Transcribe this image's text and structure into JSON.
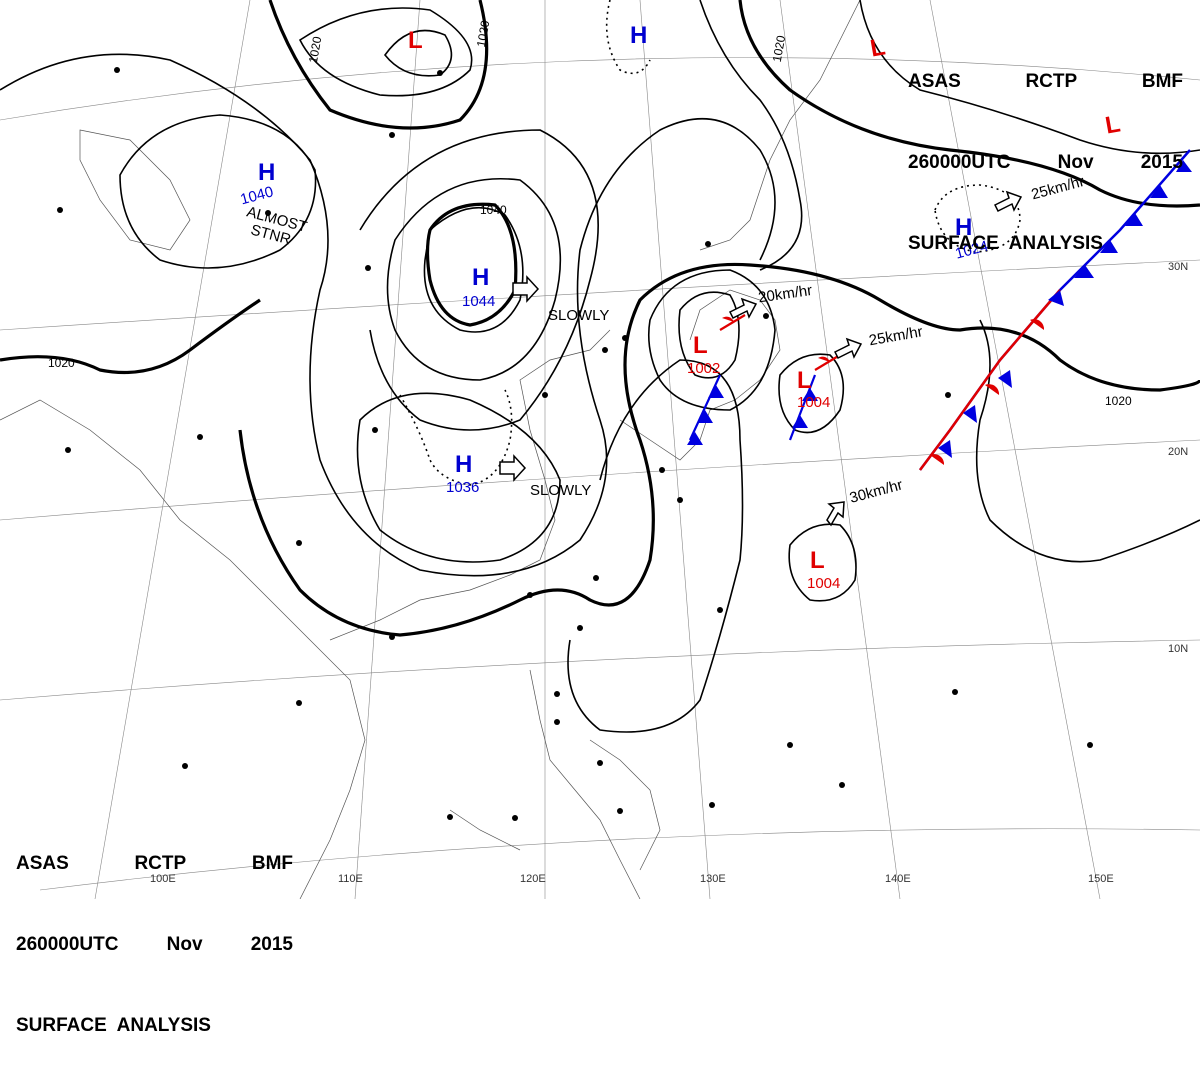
{
  "header": {
    "line1": [
      "ASAS",
      "RCTP",
      "BMF"
    ],
    "line2": [
      "260000UTC",
      "Nov",
      "2015"
    ],
    "line3": "SURFACE  ANALYSIS"
  },
  "isobar_labels": [
    "1020",
    "1020",
    "1040",
    "1020",
    "1020",
    "1020"
  ],
  "highs": [
    {
      "symbol": "H",
      "pressure": "1040",
      "note": "ALMOST STNR"
    },
    {
      "symbol": "H",
      "pressure": "1044",
      "motion": "SLOWLY"
    },
    {
      "symbol": "H",
      "pressure": "1036",
      "motion": "SLOWLY"
    },
    {
      "symbol": "H",
      "pressure": "1024",
      "motion": "25km/hr"
    },
    {
      "symbol": "H",
      "pressure": ""
    }
  ],
  "lows": [
    {
      "symbol": "L",
      "pressure": ""
    },
    {
      "symbol": "L",
      "pressure": "1002",
      "motion": "20km/hr"
    },
    {
      "symbol": "L",
      "pressure": "1004",
      "motion": "25km/hr"
    },
    {
      "symbol": "L",
      "pressure": "1004",
      "motion": "30km/hr"
    },
    {
      "symbol": "L",
      "pressure": ""
    },
    {
      "symbol": "L",
      "pressure": ""
    }
  ],
  "latitude_labels": [
    "30N",
    "20N",
    "10N"
  ],
  "longitude_labels": [
    "100E",
    "110E",
    "120E",
    "130E",
    "140E",
    "150E"
  ],
  "colors": {
    "high": "#0000d0",
    "low": "#e00000",
    "cold_front": "#0000e0",
    "warm_front": "#e00000"
  }
}
